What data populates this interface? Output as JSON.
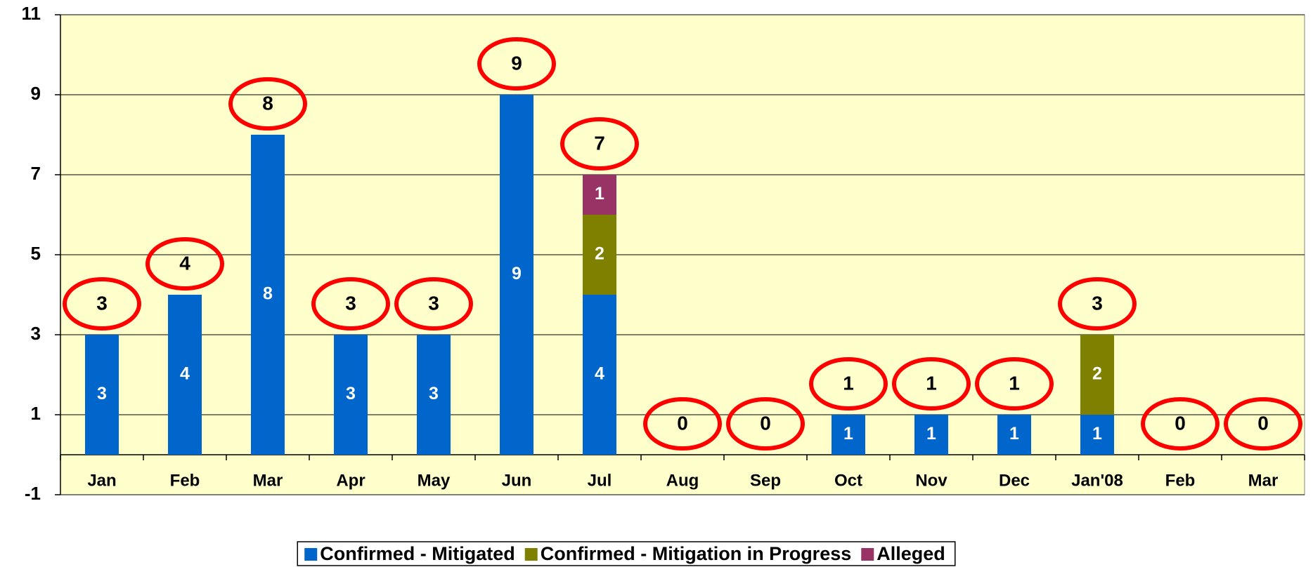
{
  "chart_data": {
    "type": "stacked_bar",
    "categories": [
      "Jan",
      "Feb",
      "Mar",
      "Apr",
      "May",
      "Jun",
      "Jul",
      "Aug",
      "Sep",
      "Oct",
      "Nov",
      "Dec",
      "Jan'08",
      "Feb",
      "Mar"
    ],
    "series": [
      {
        "name": "Confirmed - Mitigated",
        "color": "#0066cc",
        "values": [
          3,
          4,
          8,
          3,
          3,
          9,
          4,
          0,
          0,
          1,
          1,
          1,
          1,
          0,
          0
        ]
      },
      {
        "name": "Confirmed - Mitigation in Progress",
        "color": "#808000",
        "values": [
          0,
          0,
          0,
          0,
          0,
          0,
          2,
          0,
          0,
          0,
          0,
          0,
          2,
          0,
          0
        ]
      },
      {
        "name": "Alleged",
        "color": "#993366",
        "values": [
          0,
          0,
          0,
          0,
          0,
          0,
          1,
          0,
          0,
          0,
          0,
          0,
          0,
          0,
          0
        ]
      }
    ],
    "totals": [
      3,
      4,
      8,
      3,
      3,
      9,
      7,
      0,
      0,
      1,
      1,
      1,
      3,
      0,
      0
    ],
    "ylim": [
      -1,
      11
    ],
    "yticks": [
      -1,
      1,
      3,
      5,
      7,
      9,
      11
    ],
    "grid": true,
    "background": "#ffffcc",
    "total_marker_color": "#ff0000",
    "legend": "bottom"
  }
}
